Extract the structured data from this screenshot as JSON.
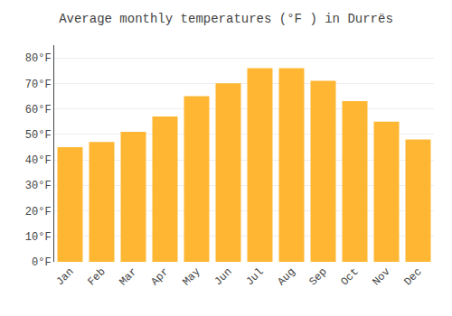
{
  "chart_data": {
    "type": "bar",
    "title": "Average monthly temperatures (°F ) in Durrës",
    "categories": [
      "Jan",
      "Feb",
      "Mar",
      "Apr",
      "May",
      "Jun",
      "Jul",
      "Aug",
      "Sep",
      "Oct",
      "Nov",
      "Dec"
    ],
    "values": [
      45,
      47,
      51,
      57,
      65,
      70,
      76,
      76,
      71,
      63,
      55,
      48
    ],
    "color": "#FFB733",
    "ylim": [
      0,
      85
    ],
    "yticks": [
      {
        "value": 0,
        "label": "0°F"
      },
      {
        "value": 10,
        "label": "10°F"
      },
      {
        "value": 20,
        "label": "20°F"
      },
      {
        "value": 30,
        "label": "30°F"
      },
      {
        "value": 40,
        "label": "40°F"
      },
      {
        "value": 50,
        "label": "50°F"
      },
      {
        "value": 60,
        "label": "60°F"
      },
      {
        "value": 70,
        "label": "70°F"
      },
      {
        "value": 80,
        "label": "80°F"
      }
    ],
    "grid": true
  }
}
